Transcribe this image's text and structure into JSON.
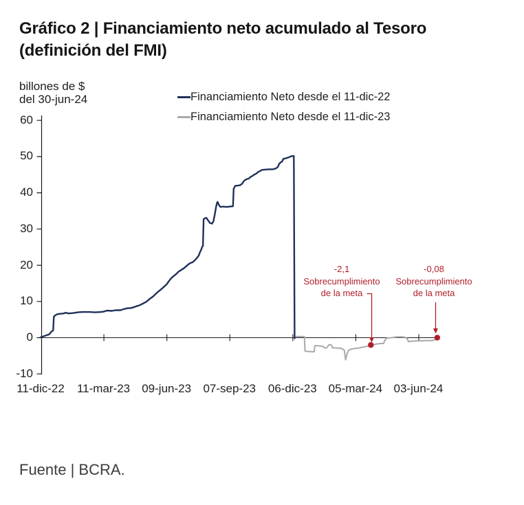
{
  "title": {
    "line1": "Gráfico 2 | Financiamiento neto acumulado al Tesoro",
    "line2": "(definición del FMI)"
  },
  "unit": {
    "line1": "billones de $",
    "line2": "del 30-jun-24"
  },
  "legend": [
    {
      "label": "Financiamiento Neto desde el 11-dic-22",
      "color": "#1f3058"
    },
    {
      "label": "Financiamiento Neto desde el 11-dic-23",
      "color": "#a9a9a9"
    }
  ],
  "annotations": [
    {
      "value": "-2,1",
      "line2": "Sobrecumplimiento",
      "line3": "de la meta"
    },
    {
      "value": "-0,08",
      "line2": "Sobrecumplimiento",
      "line3": "de la meta"
    }
  ],
  "source": {
    "text": "Fuente | BCRA."
  },
  "chart_data": {
    "type": "line",
    "title": "Gráfico 2 | Financiamiento neto acumulado al Tesoro (definición del FMI)",
    "xlabel": "",
    "ylabel": "billones de $ del 30-jun-24",
    "ylim": [
      -10,
      60
    ],
    "yticks": [
      60,
      50,
      40,
      30,
      20,
      10,
      0,
      -10
    ],
    "xtick_labels": [
      "11-dic-22",
      "11-mar-23",
      "09-jun-23",
      "07-sep-23",
      "06-dic-23",
      "05-mar-24",
      "03-jun-24"
    ],
    "xtick_days": [
      0,
      90,
      180,
      270,
      360,
      450,
      540
    ],
    "grid": false,
    "legend_position": "top",
    "axis_color": "#1a1a1a",
    "annotation_color": "#b01e28",
    "x_unit": "days since 11-dic-22",
    "series": [
      {
        "name": "Financiamiento Neto desde el 11-dic-22",
        "color": "#1f3058",
        "points": [
          [
            0,
            0
          ],
          [
            3,
            0.2
          ],
          [
            6,
            0.4
          ],
          [
            9,
            0.6
          ],
          [
            12,
            0.8
          ],
          [
            14,
            1.2
          ],
          [
            15,
            1.5
          ],
          [
            17,
            1.8
          ],
          [
            18,
            1.9
          ],
          [
            19,
            5.7
          ],
          [
            21,
            6.1
          ],
          [
            24,
            6.4
          ],
          [
            28,
            6.5
          ],
          [
            33,
            6.6
          ],
          [
            36,
            6.8
          ],
          [
            40,
            6.6
          ],
          [
            46,
            6.7
          ],
          [
            53,
            6.9
          ],
          [
            60,
            7.0
          ],
          [
            70,
            7.0
          ],
          [
            78,
            6.9
          ],
          [
            86,
            7.0
          ],
          [
            90,
            7.1
          ],
          [
            95,
            7.4
          ],
          [
            102,
            7.3
          ],
          [
            107,
            7.5
          ],
          [
            114,
            7.5
          ],
          [
            119,
            7.8
          ],
          [
            123,
            8.0
          ],
          [
            129,
            8.1
          ],
          [
            133,
            8.3
          ],
          [
            137,
            8.6
          ],
          [
            142,
            8.9
          ],
          [
            147,
            9.4
          ],
          [
            151,
            9.8
          ],
          [
            154,
            10.3
          ],
          [
            158,
            10.9
          ],
          [
            161,
            11.3
          ],
          [
            164,
            11.9
          ],
          [
            168,
            12.6
          ],
          [
            172,
            13.2
          ],
          [
            176,
            13.9
          ],
          [
            180,
            14.6
          ],
          [
            183,
            15.4
          ],
          [
            186,
            16.2
          ],
          [
            190,
            16.9
          ],
          [
            194,
            17.5
          ],
          [
            197,
            18.1
          ],
          [
            201,
            18.6
          ],
          [
            205,
            19.1
          ],
          [
            208,
            19.6
          ],
          [
            211,
            20.1
          ],
          [
            214,
            20.5
          ],
          [
            217,
            20.7
          ],
          [
            220,
            21.2
          ],
          [
            223,
            21.8
          ],
          [
            226,
            22.6
          ],
          [
            228,
            23.6
          ],
          [
            230,
            24.4
          ],
          [
            231,
            25.0
          ],
          [
            232,
            25.2
          ],
          [
            233,
            32.6
          ],
          [
            235,
            32.9
          ],
          [
            237,
            33.0
          ],
          [
            239,
            32.4
          ],
          [
            242,
            31.6
          ],
          [
            245,
            31.4
          ],
          [
            247,
            32.0
          ],
          [
            249,
            34.0
          ],
          [
            251,
            36.2
          ],
          [
            252,
            37.0
          ],
          [
            253,
            37.4
          ],
          [
            255,
            36.5
          ],
          [
            257,
            36.0
          ],
          [
            261,
            36.1
          ],
          [
            266,
            36.0
          ],
          [
            270,
            36.1
          ],
          [
            275,
            36.2
          ],
          [
            276,
            41.0
          ],
          [
            278,
            41.8
          ],
          [
            282,
            41.9
          ],
          [
            285,
            42.0
          ],
          [
            288,
            42.4
          ],
          [
            290,
            43.0
          ],
          [
            292,
            43.4
          ],
          [
            295,
            43.7
          ],
          [
            298,
            43.9
          ],
          [
            300,
            44.3
          ],
          [
            303,
            44.6
          ],
          [
            306,
            45.0
          ],
          [
            309,
            45.3
          ],
          [
            311,
            45.7
          ],
          [
            314,
            45.9
          ],
          [
            316,
            46.2
          ],
          [
            320,
            46.3
          ],
          [
            326,
            46.4
          ],
          [
            332,
            46.4
          ],
          [
            336,
            46.6
          ],
          [
            339,
            47.0
          ],
          [
            341,
            47.9
          ],
          [
            343,
            48.3
          ],
          [
            345,
            48.5
          ],
          [
            347,
            49.3
          ],
          [
            350,
            49.4
          ],
          [
            353,
            49.6
          ],
          [
            356,
            49.8
          ],
          [
            358,
            50.0
          ],
          [
            361,
            50.1
          ],
          [
            362,
            50.1
          ],
          [
            363,
            -0.3
          ]
        ]
      },
      {
        "name": "Financiamiento Neto desde el 11-dic-23",
        "color": "#a9a9a9",
        "points": [
          [
            365,
            0.2
          ],
          [
            369,
            0.25
          ],
          [
            373,
            0.2
          ],
          [
            377,
            0.2
          ],
          [
            378,
            -3.8
          ],
          [
            382,
            -3.9
          ],
          [
            386,
            -3.9
          ],
          [
            389,
            -4.0
          ],
          [
            391,
            -3.9
          ],
          [
            392,
            -2.3
          ],
          [
            396,
            -2.3
          ],
          [
            400,
            -2.4
          ],
          [
            404,
            -2.5
          ],
          [
            406,
            -2.9
          ],
          [
            408,
            -3.0
          ],
          [
            410,
            -2.6
          ],
          [
            412,
            -2.1
          ],
          [
            414,
            -2.0
          ],
          [
            416,
            -2.2
          ],
          [
            417,
            -2.9
          ],
          [
            421,
            -2.9
          ],
          [
            425,
            -3.0
          ],
          [
            429,
            -3.0
          ],
          [
            432,
            -3.3
          ],
          [
            434,
            -3.5
          ],
          [
            436,
            -6.2
          ],
          [
            438,
            -4.5
          ],
          [
            440,
            -3.6
          ],
          [
            443,
            -3.3
          ],
          [
            448,
            -3.1
          ],
          [
            453,
            -3.0
          ],
          [
            458,
            -2.8
          ],
          [
            463,
            -2.6
          ],
          [
            468,
            -2.4
          ],
          [
            471,
            -2.2
          ],
          [
            472,
            -2.1
          ],
          [
            477,
            -2.0
          ],
          [
            481,
            -1.8
          ],
          [
            486,
            -1.7
          ],
          [
            490,
            -1.7
          ],
          [
            492,
            -0.9
          ],
          [
            494,
            -0.3
          ],
          [
            497,
            -0.15
          ],
          [
            502,
            -0.1
          ],
          [
            508,
            0.1
          ],
          [
            514,
            0.15
          ],
          [
            519,
            0.1
          ],
          [
            521,
            0
          ],
          [
            524,
            -0.4
          ],
          [
            526,
            -1.2
          ],
          [
            529,
            -1.1
          ],
          [
            535,
            -1.0
          ],
          [
            542,
            -0.95
          ],
          [
            550,
            -0.9
          ],
          [
            557,
            -0.9
          ],
          [
            562,
            -0.8
          ],
          [
            565,
            -0.5
          ],
          [
            567,
            -0.08
          ]
        ]
      }
    ],
    "markers": [
      {
        "day": 472,
        "value": -2.1,
        "label": "-2,1"
      },
      {
        "day": 567,
        "value": -0.08,
        "label": "-0,08"
      }
    ]
  }
}
